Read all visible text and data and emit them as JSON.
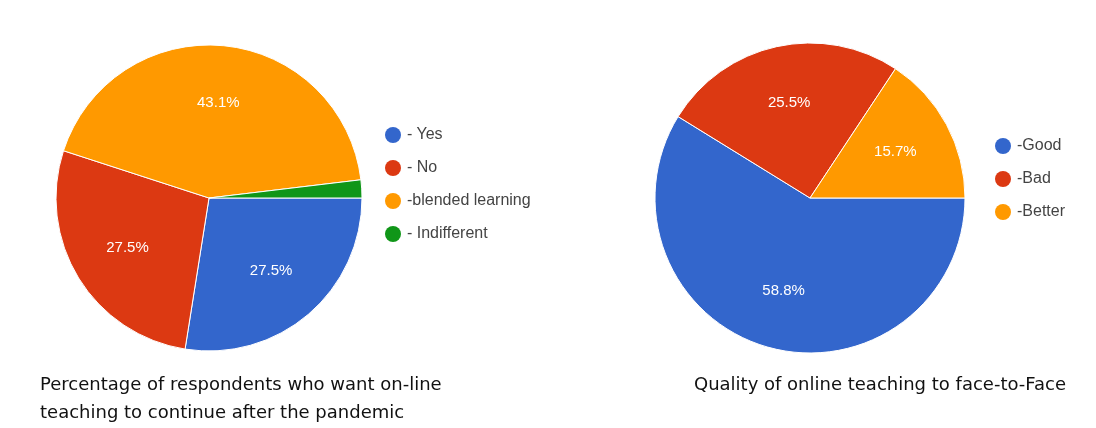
{
  "chart_data": [
    {
      "type": "pie",
      "title": "Percentage of respondents who want on-line teaching to continue after the pandemic",
      "categories": [
        "- Yes",
        "- No",
        "-blended learning",
        "- Indifferent"
      ],
      "values": [
        27.5,
        27.5,
        43.1,
        1.9
      ],
      "colors": [
        "#3366cc",
        "#dc3912",
        "#ff9900",
        "#109618"
      ],
      "value_labels": [
        "27.5%",
        "27.5%",
        "43.1%",
        null
      ],
      "legend": "right"
    },
    {
      "type": "pie",
      "title": "Quality of online teaching to face-to-Face",
      "categories": [
        "-Good",
        "-Bad",
        "-Better"
      ],
      "values": [
        58.8,
        25.5,
        15.7
      ],
      "colors": [
        "#3366cc",
        "#dc3912",
        "#ff9900"
      ],
      "value_labels": [
        "58.8%",
        "25.5%",
        "15.7%"
      ],
      "legend": "right"
    }
  ]
}
